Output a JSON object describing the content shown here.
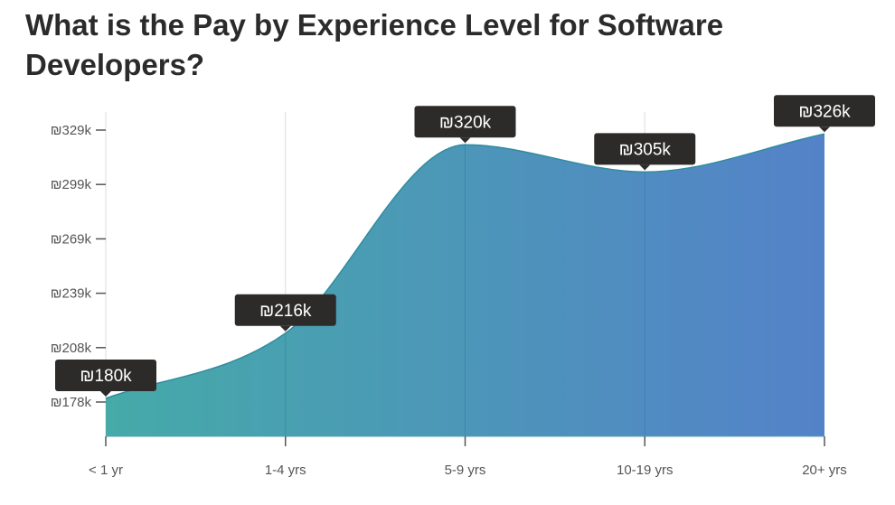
{
  "chart_data": {
    "type": "area",
    "title": "What is the Pay by Experience Level for Software Developers?",
    "categories": [
      "< 1 yr",
      "1-4 yrs",
      "5-9 yrs",
      "10-19 yrs",
      "20+ yrs"
    ],
    "values": [
      180,
      216,
      320,
      305,
      326
    ],
    "data_labels": [
      "₪180k",
      "₪216k",
      "₪320k",
      "₪305k",
      "₪326k"
    ],
    "yticks": [
      178,
      208,
      239,
      269,
      299,
      329
    ],
    "ytick_labels": [
      "₪178k",
      "₪208k",
      "₪239k",
      "₪269k",
      "₪299k",
      "₪329k"
    ],
    "ylim": [
      159,
      347
    ],
    "unit": "thousand ₪",
    "grid": "vertical",
    "colors": {
      "start": "#45aaa8",
      "end": "#5482c9",
      "line": "#2f8c9e",
      "label_bg": "#2d2a2a"
    }
  }
}
